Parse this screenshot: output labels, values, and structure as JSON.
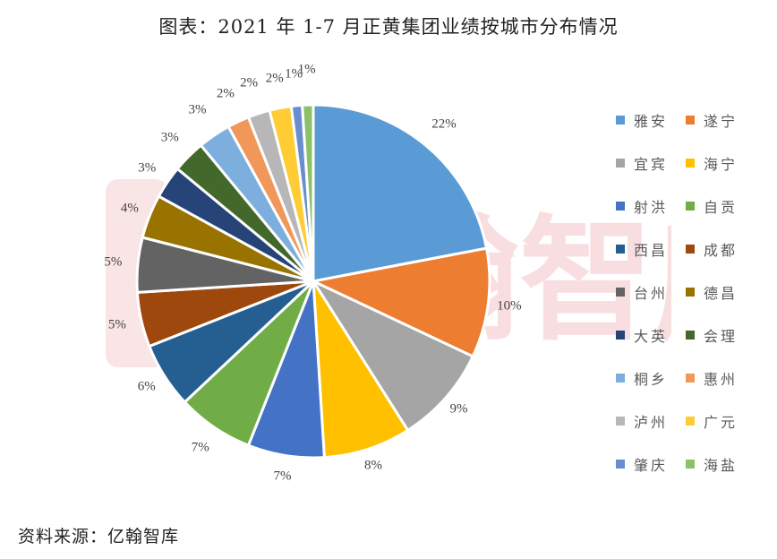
{
  "chart_data": {
    "type": "pie",
    "title": "图表：2021 年 1-7 月正黄集团业绩按城市分布情况",
    "categories": [
      "雅安",
      "遂宁",
      "宜宾",
      "海宁",
      "射洪",
      "自贡",
      "西昌",
      "成都",
      "台州",
      "德昌",
      "大英",
      "会理",
      "桐乡",
      "惠州",
      "泸州",
      "广元",
      "肇庆",
      "海盐"
    ],
    "values": [
      22,
      10,
      9,
      8,
      7,
      7,
      6,
      5,
      5,
      4,
      3,
      3,
      3,
      2,
      2,
      2,
      1,
      1
    ],
    "value_labels": [
      "22%",
      "10%",
      "9%",
      "8%",
      "7%",
      "7%",
      "6%",
      "5%",
      "5%",
      "4%",
      "3%",
      "3%",
      "3%",
      "2%",
      "2%",
      "2%",
      "1%",
      "1%"
    ],
    "colors": [
      "#5B9BD5",
      "#ED7D31",
      "#A5A5A5",
      "#FFC000",
      "#4472C4",
      "#70AD47",
      "#255E91",
      "#9E480E",
      "#636363",
      "#997300",
      "#264478",
      "#43682B",
      "#7CAFDD",
      "#F1975A",
      "#B7B7B7",
      "#FFCD33",
      "#698ED0",
      "#8CC168"
    ],
    "legend_position": "right",
    "start_angle": "12 o'clock",
    "direction": "clockwise",
    "unit": "%"
  },
  "header": {
    "title": "图表：2021 年 1-7 月正黄集团业绩按城市分布情况"
  },
  "watermark": {
    "text": "亿翰智库"
  },
  "legend": {
    "items": [
      {
        "label": "雅安",
        "color": "#5B9BD5"
      },
      {
        "label": "遂宁",
        "color": "#ED7D31"
      },
      {
        "label": "宜宾",
        "color": "#A5A5A5"
      },
      {
        "label": "海宁",
        "color": "#FFC000"
      },
      {
        "label": "射洪",
        "color": "#4472C4"
      },
      {
        "label": "自贡",
        "color": "#70AD47"
      },
      {
        "label": "西昌",
        "color": "#255E91"
      },
      {
        "label": "成都",
        "color": "#9E480E"
      },
      {
        "label": "台州",
        "color": "#636363"
      },
      {
        "label": "德昌",
        "color": "#997300"
      },
      {
        "label": "大英",
        "color": "#264478"
      },
      {
        "label": "会理",
        "color": "#43682B"
      },
      {
        "label": "桐乡",
        "color": "#7CAFDD"
      },
      {
        "label": "惠州",
        "color": "#F1975A"
      },
      {
        "label": "泸州",
        "color": "#B7B7B7"
      },
      {
        "label": "广元",
        "color": "#FFCD33"
      },
      {
        "label": "肇庆",
        "color": "#698ED0"
      },
      {
        "label": "海盐",
        "color": "#8CC168"
      }
    ]
  },
  "footer": {
    "source": "资料来源：亿翰智库"
  }
}
